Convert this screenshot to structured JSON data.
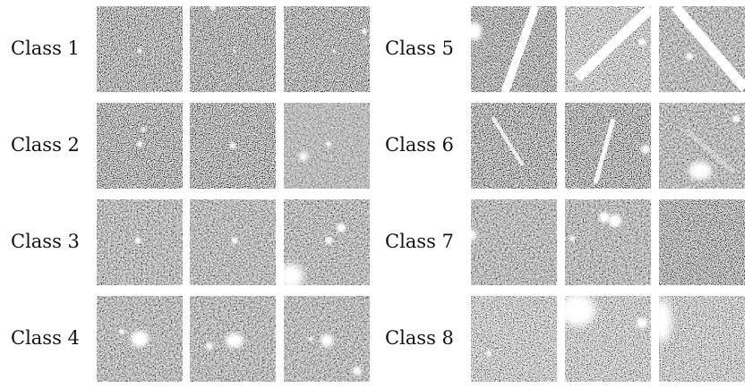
{
  "left_group": {
    "rows": [
      {
        "label": "Class 1",
        "tiles": [
          "faint-point-source",
          "faint-point-source",
          "faint-point-source"
        ]
      },
      {
        "label": "Class 2",
        "tiles": [
          "point-source",
          "point-source",
          "point-source-pair"
        ]
      },
      {
        "label": "Class 3",
        "tiles": [
          "bright-point-source",
          "bright-point-source",
          "bright-point-source-with-blob"
        ]
      },
      {
        "label": "Class 4",
        "tiles": [
          "extended-blob",
          "extended-blob",
          "extended-blob"
        ]
      }
    ]
  },
  "right_group": {
    "rows": [
      {
        "label": "Class 5",
        "tiles": [
          "bright-streak",
          "bright-streak",
          "bright-streak"
        ]
      },
      {
        "label": "Class 6",
        "tiles": [
          "faint-streak",
          "faint-streak",
          "faint-streak-with-blob"
        ]
      },
      {
        "label": "Class 7",
        "tiles": [
          "edge-artifact",
          "double-source",
          "noise-only"
        ]
      },
      {
        "label": "Class 8",
        "tiles": [
          "high-noise",
          "high-noise-saturated-corner",
          "high-noise-edge"
        ]
      }
    ]
  },
  "colors": {
    "background": "#ffffff",
    "label_text": "#111111",
    "tile_gray": "#777777"
  }
}
